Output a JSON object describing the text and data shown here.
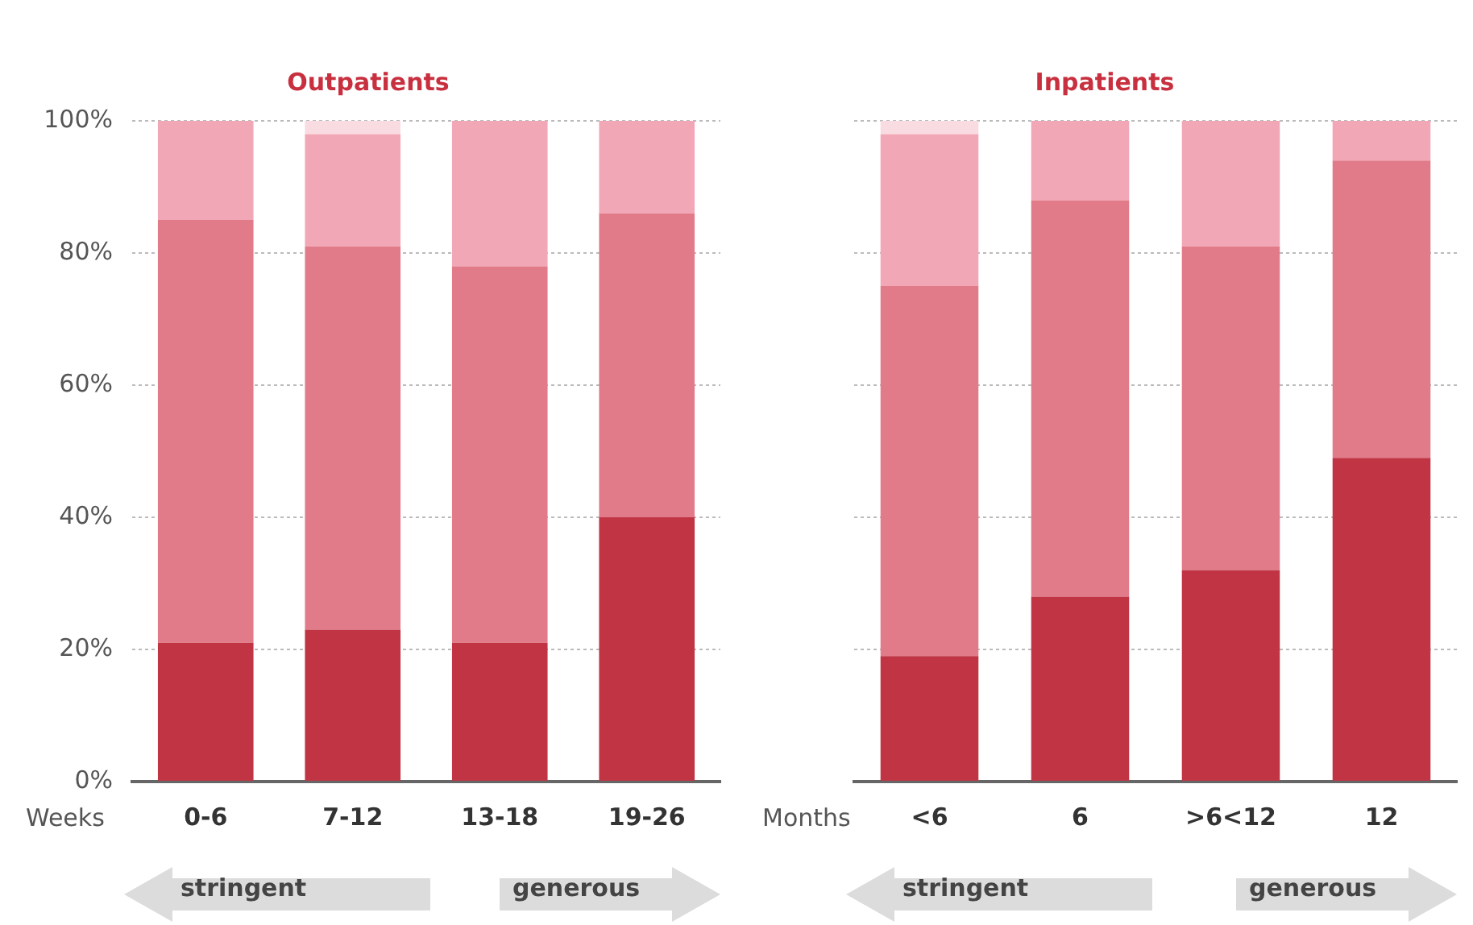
{
  "chart_data": [
    {
      "type": "bar",
      "title": "Outpatients",
      "xlabel": "Weeks",
      "categories": [
        "0-6",
        "7-12",
        "13-18",
        "19-26"
      ],
      "stacked": true,
      "series": [
        {
          "color": "#c03444",
          "values": [
            21,
            23,
            21,
            40
          ]
        },
        {
          "color": "#e27b89",
          "values": [
            64,
            58,
            57,
            46
          ]
        },
        {
          "color": "#f2a7b6",
          "values": [
            15,
            17,
            22,
            14
          ]
        },
        {
          "color": "#f9dbe2",
          "values": [
            0,
            2,
            0,
            0
          ]
        }
      ],
      "ylim": [
        0,
        100
      ],
      "yticks": [
        {
          "value": 0,
          "label": "0%"
        },
        {
          "value": 20,
          "label": "20%"
        },
        {
          "value": 40,
          "label": "40%"
        },
        {
          "value": 60,
          "label": "60%"
        },
        {
          "value": 80,
          "label": "80%"
        },
        {
          "value": 100,
          "label": "100%"
        }
      ],
      "grid": "y",
      "legend": false,
      "annotations": [
        "stringent",
        "generous"
      ]
    },
    {
      "type": "bar",
      "title": "Inpatients",
      "xlabel": "Months",
      "categories": [
        "<6",
        "6",
        ">6<12",
        "12"
      ],
      "stacked": true,
      "series": [
        {
          "color": "#c03444",
          "values": [
            19,
            28,
            32,
            49
          ]
        },
        {
          "color": "#e27b89",
          "values": [
            56,
            60,
            49,
            45
          ]
        },
        {
          "color": "#f2a7b6",
          "values": [
            23,
            12,
            19,
            6
          ]
        },
        {
          "color": "#f9dbe2",
          "values": [
            2,
            0,
            0,
            0
          ]
        }
      ],
      "ylim": [
        0,
        100
      ],
      "yticks": [
        0,
        20,
        40,
        60,
        80,
        100
      ],
      "grid": "y",
      "legend": false,
      "tick_labels": "x",
      "annotations": [
        "stringent",
        "generous"
      ]
    }
  ]
}
